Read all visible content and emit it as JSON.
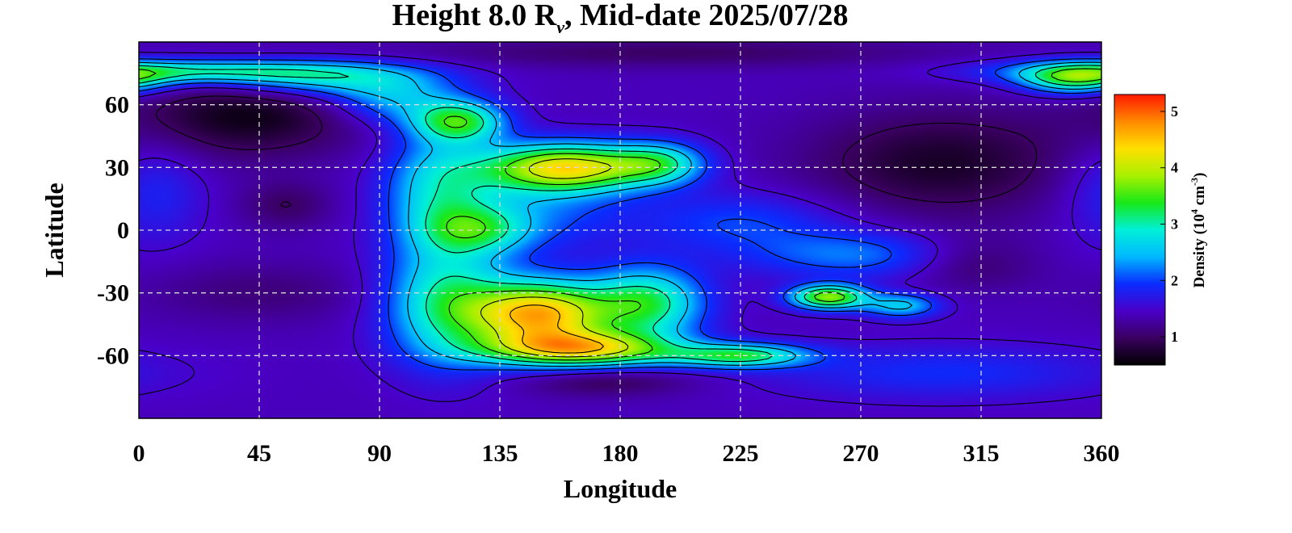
{
  "chart_data": {
    "type": "heatmap",
    "title": {
      "prefix": "Height 8.0 R",
      "subscript": "ν",
      "suffix": ", Mid-date 2025/07/28"
    },
    "xlabel": "Longitude",
    "ylabel": "Latitude",
    "xlim": [
      0,
      360
    ],
    "ylim": [
      -90,
      90
    ],
    "xticks": [
      "0",
      "45",
      "90",
      "135",
      "180",
      "225",
      "270",
      "315",
      "360"
    ],
    "yticks": [
      "60",
      "30",
      "0",
      "-30",
      "-60"
    ],
    "grid": true,
    "colorbar": {
      "label_main": "Density (10",
      "label_exp1": "4",
      "label_mid": " cm",
      "label_exp2": "-3",
      "label_end": ")",
      "range": [
        0.5,
        5.3
      ],
      "ticks": [
        "1",
        "2",
        "3",
        "4",
        "5"
      ],
      "colors": [
        "#000000",
        "#3a0060",
        "#4a00c8",
        "#0a2cff",
        "#00b8ff",
        "#00f0d8",
        "#18e818",
        "#a8f000",
        "#ffe000",
        "#ff8a00",
        "#ff1800"
      ]
    },
    "background_density": 1.4,
    "features": [
      {
        "lon": 20,
        "lat": 76,
        "slon": 40,
        "slat": 4,
        "amp": 1.6
      },
      {
        "lon": 70,
        "lat": 72,
        "slon": 28,
        "slat": 6,
        "amp": 1.2
      },
      {
        "lon": 95,
        "lat": 62,
        "slon": 16,
        "slat": 8,
        "amp": 0.9
      },
      {
        "lon": 120,
        "lat": 52,
        "slon": 12,
        "slat": 7,
        "amp": 1.8
      },
      {
        "lon": 160,
        "lat": 30,
        "slon": 22,
        "slat": 8,
        "amp": 2.8
      },
      {
        "lon": 195,
        "lat": 32,
        "slon": 12,
        "slat": 7,
        "amp": 1.3
      },
      {
        "lon": 112,
        "lat": 20,
        "slon": 14,
        "slat": 20,
        "amp": 1.2
      },
      {
        "lon": 127,
        "lat": 0,
        "slon": 14,
        "slat": 8,
        "amp": 1.1
      },
      {
        "lon": 145,
        "lat": 10,
        "slon": 25,
        "slat": 14,
        "amp": 0.7
      },
      {
        "lon": 115,
        "lat": -35,
        "slon": 16,
        "slat": 20,
        "amp": 1.6
      },
      {
        "lon": 150,
        "lat": -40,
        "slon": 18,
        "slat": 11,
        "amp": 3.1
      },
      {
        "lon": 165,
        "lat": -57,
        "slon": 25,
        "slat": 6,
        "amp": 2.6
      },
      {
        "lon": 190,
        "lat": -35,
        "slon": 15,
        "slat": 12,
        "amp": 1.8
      },
      {
        "lon": 225,
        "lat": -60,
        "slon": 18,
        "slat": 4,
        "amp": 1.8
      },
      {
        "lon": 258,
        "lat": -32,
        "slon": 10,
        "slat": 4,
        "amp": 2.4
      },
      {
        "lon": 285,
        "lat": -36,
        "slon": 10,
        "slat": 4,
        "amp": 1.2
      },
      {
        "lon": 270,
        "lat": -12,
        "slon": 30,
        "slat": 8,
        "amp": 0.8
      },
      {
        "lon": 225,
        "lat": 4,
        "slon": 28,
        "slat": 10,
        "amp": 0.6
      },
      {
        "lon": 350,
        "lat": 72,
        "slon": 14,
        "slat": 5,
        "amp": 1.7
      },
      {
        "lon": 5,
        "lat": 20,
        "slon": 14,
        "slat": 18,
        "amp": 0.5
      },
      {
        "lon": 300,
        "lat": -68,
        "slon": 45,
        "slat": 9,
        "amp": 0.5
      },
      {
        "lon": 40,
        "lat": 55,
        "slon": 30,
        "slat": 14,
        "amp": -0.8
      },
      {
        "lon": 300,
        "lat": 32,
        "slon": 35,
        "slat": 18,
        "amp": -0.7
      },
      {
        "lon": 310,
        "lat": -15,
        "slon": 18,
        "slat": 9,
        "amp": -0.5
      },
      {
        "lon": 175,
        "lat": -72,
        "slon": 22,
        "slat": 5,
        "amp": -0.5
      },
      {
        "lon": 200,
        "lat": 85,
        "slon": 70,
        "slat": 5,
        "amp": -0.4
      },
      {
        "lon": 45,
        "lat": -30,
        "slon": 30,
        "slat": 10,
        "amp": -0.3
      },
      {
        "lon": 55,
        "lat": 12,
        "slon": 12,
        "slat": 8,
        "amp": -0.4
      }
    ],
    "contour_levels": [
      1.0,
      1.5,
      2.0,
      2.5,
      3.0,
      3.5,
      4.0,
      4.5
    ]
  }
}
